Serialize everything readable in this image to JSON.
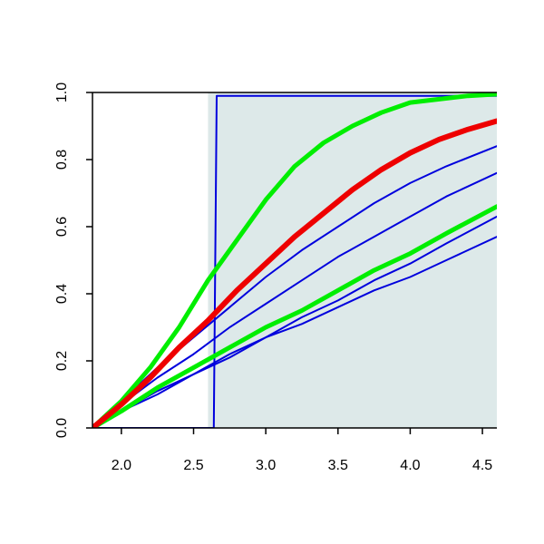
{
  "chart_data": {
    "type": "line",
    "title": "",
    "xlabel": "",
    "ylabel": "",
    "xlim": [
      1.8,
      4.6
    ],
    "ylim": [
      0.0,
      1.0
    ],
    "x_ticks": [
      2.0,
      2.5,
      3.0,
      3.5,
      4.0,
      4.5
    ],
    "y_ticks": [
      0.0,
      0.2,
      0.4,
      0.6,
      0.8,
      1.0
    ],
    "x_tick_labels": [
      "2.0",
      "2.5",
      "3.0",
      "3.5",
      "4.0",
      "4.5"
    ],
    "y_tick_labels": [
      "0.0",
      "0.2",
      "0.4",
      "0.6",
      "0.8",
      "1.0"
    ],
    "grid": false,
    "shaded_region": {
      "x": [
        2.6,
        4.6
      ],
      "y": [
        0.0,
        1.0
      ],
      "color": "#dde9e9"
    },
    "series": [
      {
        "color": "#0000dd",
        "style": "thin",
        "points": [
          [
            1.8,
            0.0
          ],
          [
            2.64,
            0.0
          ],
          [
            2.66,
            0.99
          ],
          [
            2.67,
            0.99
          ],
          [
            4.6,
            0.99
          ]
        ]
      },
      {
        "color": "#0000dd",
        "style": "thin",
        "points": [
          [
            1.8,
            0.0
          ],
          [
            2.0,
            0.08
          ],
          [
            2.25,
            0.18
          ],
          [
            2.5,
            0.27
          ],
          [
            2.75,
            0.36
          ],
          [
            3.0,
            0.45
          ],
          [
            3.25,
            0.53
          ],
          [
            3.5,
            0.6
          ],
          [
            3.75,
            0.67
          ],
          [
            4.0,
            0.73
          ],
          [
            4.25,
            0.78
          ],
          [
            4.6,
            0.84
          ]
        ]
      },
      {
        "color": "#0000dd",
        "style": "thin",
        "points": [
          [
            1.8,
            0.0
          ],
          [
            2.0,
            0.07
          ],
          [
            2.25,
            0.15
          ],
          [
            2.5,
            0.22
          ],
          [
            2.75,
            0.3
          ],
          [
            3.0,
            0.37
          ],
          [
            3.25,
            0.44
          ],
          [
            3.5,
            0.51
          ],
          [
            3.75,
            0.57
          ],
          [
            4.0,
            0.63
          ],
          [
            4.25,
            0.69
          ],
          [
            4.6,
            0.76
          ]
        ]
      },
      {
        "color": "#0000dd",
        "style": "thin",
        "points": [
          [
            1.8,
            0.0
          ],
          [
            2.0,
            0.05
          ],
          [
            2.25,
            0.11
          ],
          [
            2.5,
            0.16
          ],
          [
            2.75,
            0.22
          ],
          [
            3.0,
            0.27
          ],
          [
            3.25,
            0.33
          ],
          [
            3.5,
            0.38
          ],
          [
            3.75,
            0.44
          ],
          [
            4.0,
            0.49
          ],
          [
            4.25,
            0.55
          ],
          [
            4.6,
            0.63
          ]
        ]
      },
      {
        "color": "#0000dd",
        "style": "thin",
        "points": [
          [
            1.8,
            0.0
          ],
          [
            2.0,
            0.05
          ],
          [
            2.25,
            0.1
          ],
          [
            2.5,
            0.16
          ],
          [
            2.75,
            0.21
          ],
          [
            3.0,
            0.27
          ],
          [
            3.25,
            0.31
          ],
          [
            3.5,
            0.36
          ],
          [
            3.75,
            0.41
          ],
          [
            4.0,
            0.45
          ],
          [
            4.25,
            0.5
          ],
          [
            4.6,
            0.57
          ]
        ]
      },
      {
        "color": "#00ee00",
        "style": "thick",
        "points": [
          [
            1.8,
            0.0
          ],
          [
            2.0,
            0.08
          ],
          [
            2.2,
            0.18
          ],
          [
            2.4,
            0.3
          ],
          [
            2.6,
            0.44
          ],
          [
            2.8,
            0.56
          ],
          [
            3.0,
            0.68
          ],
          [
            3.2,
            0.78
          ],
          [
            3.4,
            0.85
          ],
          [
            3.6,
            0.9
          ],
          [
            3.8,
            0.94
          ],
          [
            4.0,
            0.97
          ],
          [
            4.2,
            0.98
          ],
          [
            4.4,
            0.99
          ],
          [
            4.6,
            0.995
          ]
        ]
      },
      {
        "color": "#00ee00",
        "style": "thick",
        "points": [
          [
            1.8,
            0.0
          ],
          [
            2.0,
            0.05
          ],
          [
            2.25,
            0.12
          ],
          [
            2.5,
            0.18
          ],
          [
            2.75,
            0.24
          ],
          [
            3.0,
            0.3
          ],
          [
            3.25,
            0.35
          ],
          [
            3.5,
            0.41
          ],
          [
            3.75,
            0.47
          ],
          [
            4.0,
            0.52
          ],
          [
            4.25,
            0.58
          ],
          [
            4.6,
            0.66
          ]
        ]
      },
      {
        "color": "#ee0000",
        "style": "thicker",
        "points": [
          [
            1.8,
            0.0
          ],
          [
            2.0,
            0.07
          ],
          [
            2.2,
            0.15
          ],
          [
            2.4,
            0.24
          ],
          [
            2.6,
            0.32
          ],
          [
            2.8,
            0.41
          ],
          [
            3.0,
            0.49
          ],
          [
            3.2,
            0.57
          ],
          [
            3.4,
            0.64
          ],
          [
            3.6,
            0.71
          ],
          [
            3.8,
            0.77
          ],
          [
            4.0,
            0.82
          ],
          [
            4.2,
            0.86
          ],
          [
            4.4,
            0.89
          ],
          [
            4.6,
            0.915
          ]
        ]
      }
    ]
  }
}
